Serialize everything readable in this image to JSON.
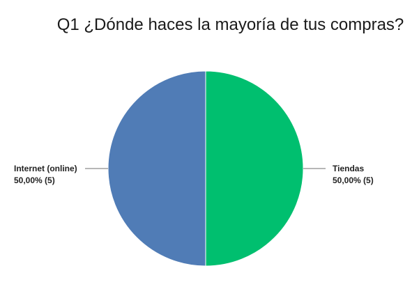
{
  "chart_data": {
    "type": "pie",
    "title": "Q1 ¿Dónde haces la mayoría de tus compras?",
    "slices": [
      {
        "name": "Tiendas",
        "value": 50.0,
        "count": 5,
        "label_value": "50,00% (5)",
        "color": "#00BF6F"
      },
      {
        "name": "Internet (online)",
        "value": 50.0,
        "count": 5,
        "label_value": "50,00% (5)",
        "color": "#507CB6"
      }
    ],
    "label_line_color": "#6f6f6f"
  }
}
